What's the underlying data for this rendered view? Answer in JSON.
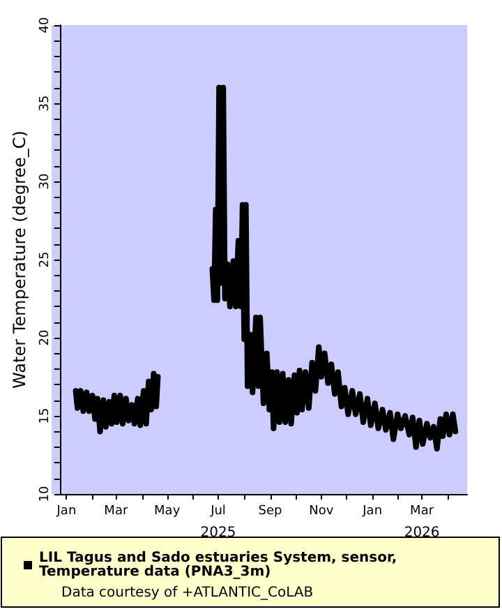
{
  "chart_data": {
    "type": "line",
    "ylabel": "Water Temperature (degree_C)",
    "annotations": [
      "Data courtesy of +ATLANTIC_CoLAB"
    ],
    "x2lim": [
      "2024-12-24",
      "2026-04-24"
    ],
    "x2ticks": [
      {
        "value": "2025-07",
        "label": "2025"
      },
      {
        "value": "2026-03",
        "label": "2026"
      }
    ],
    "xlim": [
      "2024-12-24",
      "2026-04-24"
    ],
    "xticks": [
      {
        "value": "2025-01",
        "label": "Jan"
      },
      {
        "value": "2025-02",
        "label": null
      },
      {
        "value": "2025-03",
        "label": "Mar"
      },
      {
        "value": "2025-04",
        "label": null
      },
      {
        "value": "2025-05",
        "label": "May"
      },
      {
        "value": "2025-06",
        "label": null
      },
      {
        "value": "2025-07",
        "label": "Jul"
      },
      {
        "value": "2025-08",
        "label": null
      },
      {
        "value": "2025-09",
        "label": "Sep"
      },
      {
        "value": "2025-10",
        "label": null
      },
      {
        "value": "2025-11",
        "label": "Nov"
      },
      {
        "value": "2025-12",
        "label": null
      },
      {
        "value": "2026-01",
        "label": "Jan"
      },
      {
        "value": "2026-02",
        "label": null
      },
      {
        "value": "2026-03",
        "label": "Mar"
      },
      {
        "value": "2026-04",
        "label": null
      }
    ],
    "ylim": [
      10,
      40
    ],
    "yticks": [
      10,
      {
        "value": 11,
        "label": null
      },
      {
        "value": 12,
        "label": null
      },
      {
        "value": 13,
        "label": null
      },
      {
        "value": 14,
        "label": null
      },
      15,
      {
        "value": 16,
        "label": null
      },
      {
        "value": 17,
        "label": null
      },
      {
        "value": 18,
        "label": null
      },
      {
        "value": 19,
        "label": null
      },
      20,
      {
        "value": 21,
        "label": null
      },
      {
        "value": 22,
        "label": null
      },
      {
        "value": 23,
        "label": null
      },
      {
        "value": 24,
        "label": null
      },
      25,
      {
        "value": 26,
        "label": null
      },
      {
        "value": 27,
        "label": null
      },
      {
        "value": 28,
        "label": null
      },
      {
        "value": 29,
        "label": null
      },
      30,
      {
        "value": 31,
        "label": null
      },
      {
        "value": 32,
        "label": null
      },
      {
        "value": 33,
        "label": null
      },
      {
        "value": 34,
        "label": null
      },
      35,
      {
        "value": 36,
        "label": null
      },
      {
        "value": 37,
        "label": null
      },
      {
        "value": 38,
        "label": null
      },
      {
        "value": 39,
        "label": null
      },
      40
    ],
    "grid": false,
    "legend": "bottom",
    "marker": "square",
    "line_style": "solid",
    "series": [
      {
        "name": "LIL Tagus and Sado estuaries System, sensor, Temperature data (PNA3_3m)",
        "color": "#000000",
        "x": [
          "2025-01-12",
          "2025-01-14",
          "2025-01-18",
          "2025-01-21",
          "2025-01-25",
          "2025-01-28",
          "2025-02-01",
          "2025-02-04",
          "2025-02-07",
          "2025-02-10",
          "2025-02-14",
          "2025-02-17",
          "2025-02-21",
          "2025-02-24",
          "2025-02-27",
          "2025-03-02",
          "2025-03-06",
          "2025-03-09",
          "2025-03-13",
          "2025-03-16",
          "2025-03-20",
          "2025-03-23",
          "2025-03-27",
          "2025-03-30",
          "2025-04-03",
          "2025-04-06",
          "2025-04-09",
          "2025-04-12",
          "2025-04-15",
          "2025-04-18",
          "2025-04-20",
          "2025-05-30",
          "2025-06-24",
          "2025-06-26",
          "2025-06-28",
          "2025-06-30",
          "2025-07-02",
          "2025-07-05",
          "2025-07-07",
          "2025-07-09",
          "2025-07-12",
          "2025-07-15",
          "2025-07-19",
          "2025-07-22",
          "2025-07-25",
          "2025-07-28",
          "2025-07-30",
          "2025-08-01",
          "2025-08-03",
          "2025-08-05",
          "2025-08-08",
          "2025-08-11",
          "2025-08-15",
          "2025-08-18",
          "2025-08-20",
          "2025-08-24",
          "2025-08-28",
          "2025-08-31",
          "2025-09-03",
          "2025-09-05",
          "2025-09-09",
          "2025-09-12",
          "2025-09-16",
          "2025-09-19",
          "2025-09-23",
          "2025-09-26",
          "2025-09-30",
          "2025-10-03",
          "2025-10-06",
          "2025-10-09",
          "2025-10-13",
          "2025-10-17",
          "2025-10-21",
          "2025-10-25",
          "2025-10-29",
          "2025-11-01",
          "2025-11-05",
          "2025-11-09",
          "2025-11-13",
          "2025-11-17",
          "2025-11-21",
          "2025-11-25",
          "2025-11-29",
          "2025-12-03",
          "2025-12-08",
          "2025-12-12",
          "2025-12-17",
          "2025-12-21",
          "2025-12-26",
          "2025-12-30",
          "2026-01-04",
          "2026-01-08",
          "2026-01-13",
          "2026-01-17",
          "2026-01-22",
          "2026-01-26",
          "2026-01-31",
          "2026-02-04",
          "2026-02-09",
          "2026-02-14",
          "2026-02-18",
          "2026-02-22",
          "2026-02-26",
          "2026-03-02",
          "2026-03-07",
          "2026-03-11",
          "2026-03-15",
          "2026-03-19",
          "2026-03-23",
          "2026-03-26",
          "2026-03-30",
          "2026-04-03",
          "2026-04-07",
          "2026-04-10"
        ],
        "values": [
          16.6,
          15.5,
          16.6,
          15.3,
          16.5,
          15.3,
          16.3,
          14.8,
          16.1,
          14.0,
          16.0,
          14.3,
          15.9,
          14.5,
          16.3,
          14.6,
          16.3,
          14.5,
          16.1,
          14.7,
          15.7,
          14.5,
          16.1,
          14.4,
          16.6,
          14.5,
          17.2,
          15.4,
          17.7,
          15.6,
          17.5,
          null,
          24.4,
          22.4,
          28.2,
          22.4,
          36.0,
          23.5,
          36.0,
          22.5,
          24.7,
          22.0,
          24.9,
          22.0,
          26.2,
          22.0,
          28.5,
          19.9,
          28.5,
          16.9,
          20.2,
          16.5,
          21.3,
          16.9,
          21.3,
          15.8,
          19.0,
          15.4,
          17.8,
          14.2,
          17.8,
          14.6,
          17.7,
          14.6,
          17.3,
          14.5,
          17.6,
          15.2,
          17.9,
          15.4,
          17.8,
          15.5,
          18.4,
          16.6,
          19.4,
          17.5,
          19.0,
          17.1,
          18.3,
          16.4,
          17.8,
          15.6,
          16.8,
          15.1,
          16.6,
          15.1,
          16.4,
          14.6,
          16.1,
          14.4,
          15.8,
          14.2,
          15.4,
          14.1,
          15.2,
          13.5,
          15.1,
          14.2,
          15.0,
          13.8,
          14.9,
          13.0,
          14.7,
          13.2,
          14.5,
          13.6,
          14.3,
          12.9,
          14.8,
          13.7,
          15.1,
          13.8,
          15.1,
          14.0
        ]
      }
    ]
  }
}
